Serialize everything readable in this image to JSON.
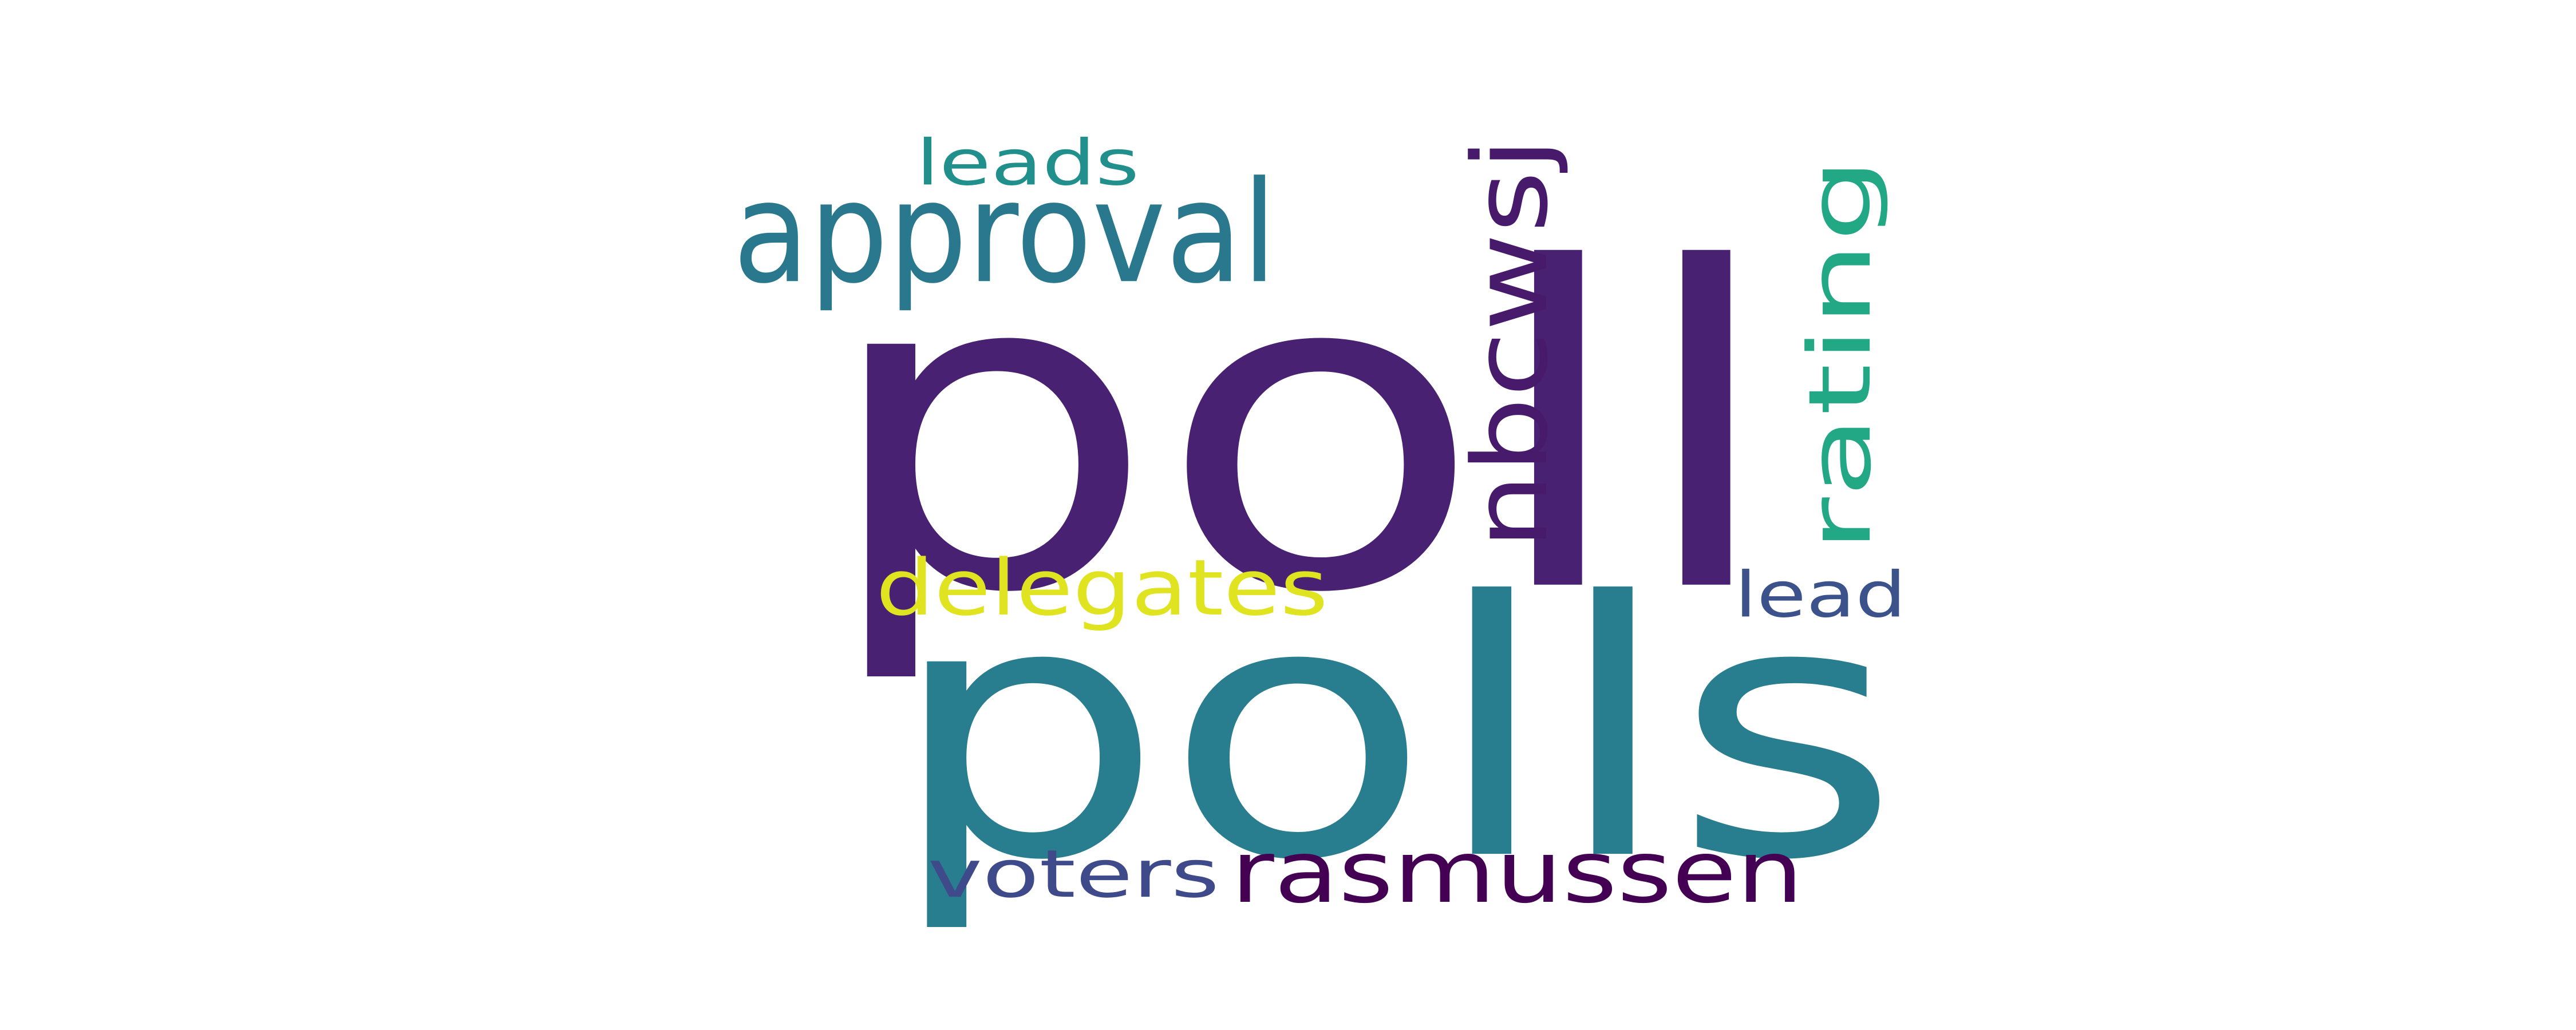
{
  "words": [
    {
      "id": "poll",
      "text": "poll",
      "color": "#482173"
    },
    {
      "id": "polls",
      "text": "polls",
      "color": "#287d8e"
    },
    {
      "id": "approval",
      "text": "approval",
      "color": "#2a788e"
    },
    {
      "id": "nbcwsj",
      "text": "nbcwsj",
      "color": "#481a6c"
    },
    {
      "id": "rating",
      "text": "rating",
      "color": "#22a884"
    },
    {
      "id": "delegates",
      "text": "delegates",
      "color": "#e0e31f"
    },
    {
      "id": "leads",
      "text": "leads",
      "color": "#21908c"
    },
    {
      "id": "lead",
      "text": "lead",
      "color": "#3b528b"
    },
    {
      "id": "voters",
      "text": "voters",
      "color": "#3e4a89"
    },
    {
      "id": "rasmussen",
      "text": "rasmussen",
      "color": "#440154"
    }
  ]
}
